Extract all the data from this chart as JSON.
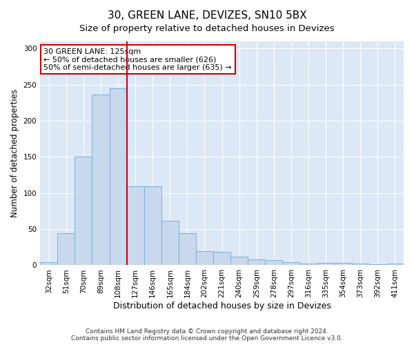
{
  "title": "30, GREEN LANE, DEVIZES, SN10 5BX",
  "subtitle": "Size of property relative to detached houses in Devizes",
  "xlabel": "Distribution of detached houses by size in Devizes",
  "ylabel": "Number of detached properties",
  "categories": [
    "32sqm",
    "51sqm",
    "70sqm",
    "89sqm",
    "108sqm",
    "127sqm",
    "146sqm",
    "165sqm",
    "184sqm",
    "202sqm",
    "221sqm",
    "240sqm",
    "259sqm",
    "278sqm",
    "297sqm",
    "316sqm",
    "335sqm",
    "354sqm",
    "373sqm",
    "392sqm",
    "411sqm"
  ],
  "values": [
    4,
    44,
    150,
    236,
    245,
    109,
    109,
    62,
    44,
    20,
    19,
    12,
    8,
    7,
    4,
    2,
    3,
    3,
    2,
    1,
    2
  ],
  "bar_color": "#c8d9ee",
  "bar_edge_color": "#7aadd4",
  "vline_color": "#cc0000",
  "annotation_text": "30 GREEN LANE: 125sqm\n← 50% of detached houses are smaller (626)\n50% of semi-detached houses are larger (635) →",
  "annotation_box_color": "#ffffff",
  "annotation_box_edge_color": "#cc0000",
  "ylim": [
    0,
    310
  ],
  "yticks": [
    0,
    50,
    100,
    150,
    200,
    250,
    300
  ],
  "background_color": "#dce8f5",
  "grid_color": "#ffffff",
  "footnote": "Contains HM Land Registry data © Crown copyright and database right 2024.\nContains public sector information licensed under the Open Government Licence v3.0.",
  "title_fontsize": 11,
  "subtitle_fontsize": 9.5,
  "xlabel_fontsize": 9,
  "ylabel_fontsize": 8.5,
  "tick_fontsize": 7.5,
  "annotation_fontsize": 8,
  "footnote_fontsize": 6.5
}
